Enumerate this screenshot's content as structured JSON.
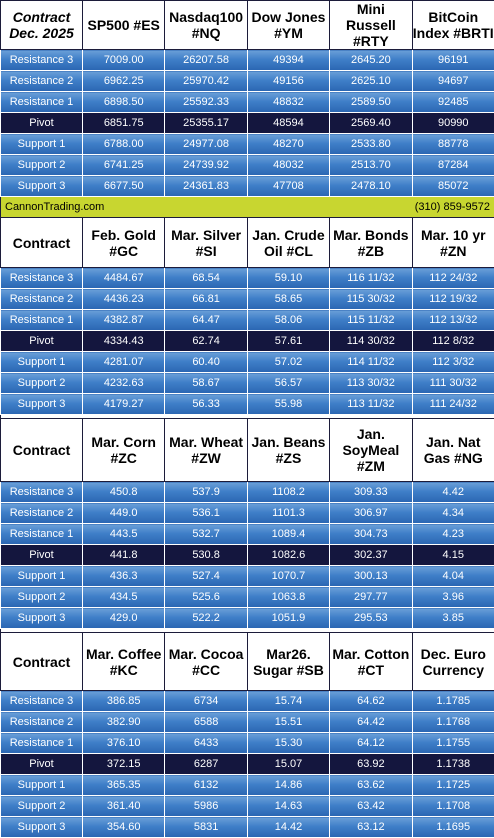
{
  "banner": {
    "left": "CannonTrading.com",
    "right": "(310) 859-9572"
  },
  "row_labels": [
    "Resistance 3",
    "Resistance 2",
    "Resistance 1",
    "Pivot",
    "Support 1",
    "Support 2",
    "Support 3"
  ],
  "sections": [
    {
      "corner": "Contract Dec. 2025",
      "headers": [
        "SP500 #ES",
        "Nasdaq100 #NQ",
        "Dow Jones #YM",
        "Mini Russell #RTY",
        "BitCoin Index #BRTI"
      ],
      "rows": [
        [
          "7009.00",
          "26207.58",
          "49394",
          "2645.20",
          "96191"
        ],
        [
          "6962.25",
          "25970.42",
          "49156",
          "2625.10",
          "94697"
        ],
        [
          "6898.50",
          "25592.33",
          "48832",
          "2589.50",
          "92485"
        ],
        [
          "6851.75",
          "25355.17",
          "48594",
          "2569.40",
          "90990"
        ],
        [
          "6788.00",
          "24977.08",
          "48270",
          "2533.80",
          "88778"
        ],
        [
          "6741.25",
          "24739.92",
          "48032",
          "2513.70",
          "87284"
        ],
        [
          "6677.50",
          "24361.83",
          "47708",
          "2478.10",
          "85072"
        ]
      ]
    },
    {
      "corner": "Contract",
      "headers": [
        "Feb. Gold #GC",
        "Mar. Silver #SI",
        "Jan. Crude Oil #CL",
        "Mar. Bonds #ZB",
        "Mar. 10 yr #ZN"
      ],
      "rows": [
        [
          "4484.67",
          "68.54",
          "59.10",
          "116 11/32",
          "112 24/32"
        ],
        [
          "4436.23",
          "66.81",
          "58.65",
          "115 30/32",
          "112 19/32"
        ],
        [
          "4382.87",
          "64.47",
          "58.06",
          "115 11/32",
          "112 13/32"
        ],
        [
          "4334.43",
          "62.74",
          "57.61",
          "114 30/32",
          "112  8/32"
        ],
        [
          "4281.07",
          "60.40",
          "57.02",
          "114 11/32",
          "112  3/32"
        ],
        [
          "4232.63",
          "58.67",
          "56.57",
          "113 30/32",
          "111 30/32"
        ],
        [
          "4179.27",
          "56.33",
          "55.98",
          "113 11/32",
          "111 24/32"
        ]
      ]
    },
    {
      "corner": "Contract",
      "headers": [
        "Mar. Corn #ZC",
        "Mar. Wheat #ZW",
        "Jan. Beans #ZS",
        "Jan. SoyMeal #ZM",
        "Jan. Nat Gas #NG"
      ],
      "rows": [
        [
          "450.8",
          "537.9",
          "1108.2",
          "309.33",
          "4.42"
        ],
        [
          "449.0",
          "536.1",
          "1101.3",
          "306.97",
          "4.34"
        ],
        [
          "443.5",
          "532.7",
          "1089.4",
          "304.73",
          "4.23"
        ],
        [
          "441.8",
          "530.8",
          "1082.6",
          "302.37",
          "4.15"
        ],
        [
          "436.3",
          "527.4",
          "1070.7",
          "300.13",
          "4.04"
        ],
        [
          "434.5",
          "525.6",
          "1063.8",
          "297.77",
          "3.96"
        ],
        [
          "429.0",
          "522.2",
          "1051.9",
          "295.53",
          "3.85"
        ]
      ]
    },
    {
      "corner": "Contract",
      "headers": [
        "Mar. Coffee #KC",
        "Mar. Cocoa #CC",
        "Mar26. Sugar #SB",
        "Mar. Cotton #CT",
        "Dec. Euro Currency"
      ],
      "rows": [
        [
          "386.85",
          "6734",
          "15.74",
          "64.62",
          "1.1785"
        ],
        [
          "382.90",
          "6588",
          "15.51",
          "64.42",
          "1.1768"
        ],
        [
          "376.10",
          "6433",
          "15.30",
          "64.12",
          "1.1755"
        ],
        [
          "372.15",
          "6287",
          "15.07",
          "63.92",
          "1.1738"
        ],
        [
          "365.35",
          "6132",
          "14.86",
          "63.62",
          "1.1725"
        ],
        [
          "361.40",
          "5986",
          "14.63",
          "63.42",
          "1.1708"
        ],
        [
          "354.60",
          "5831",
          "14.42",
          "63.12",
          "1.1695"
        ]
      ]
    }
  ]
}
